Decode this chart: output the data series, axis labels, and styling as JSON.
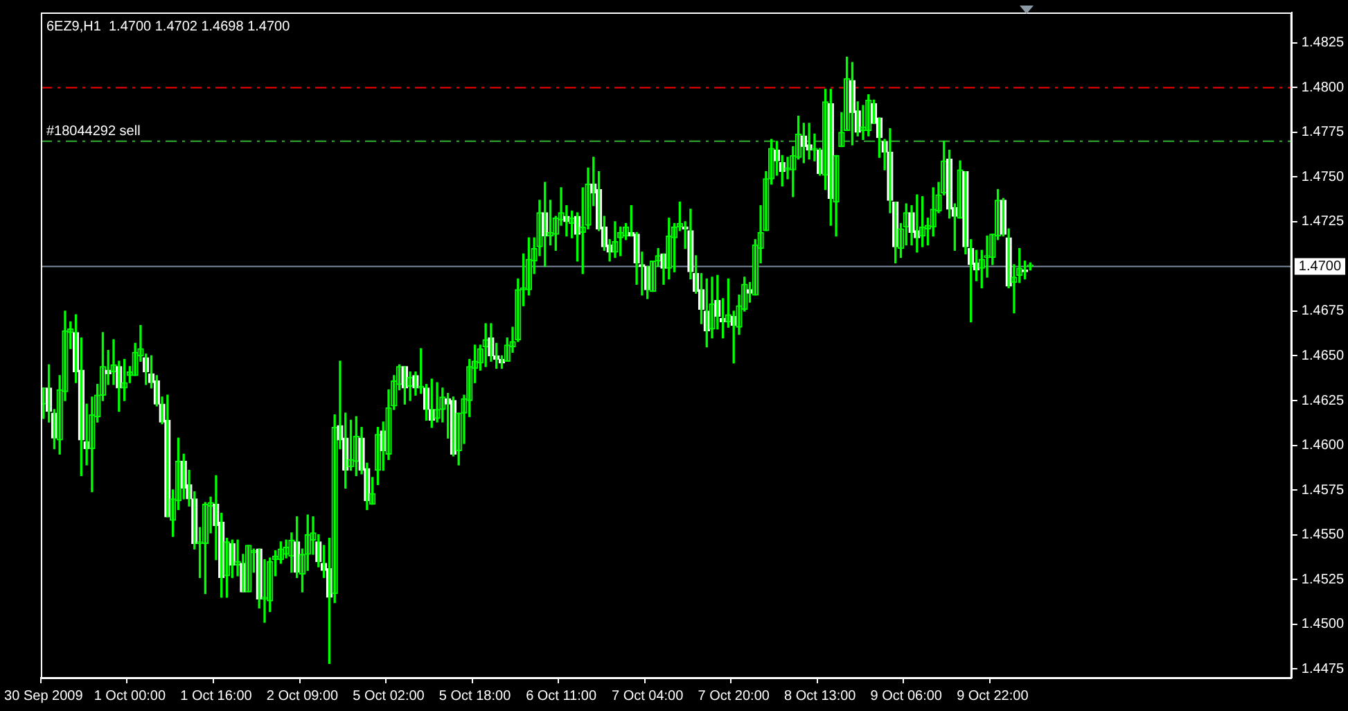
{
  "chart_data": {
    "type": "candlestick",
    "title": "6EZ9,H1  1.4700 1.4702 1.4698 1.4700",
    "color": "#00ff00",
    "categories": [
      "30 Sep 2009",
      null,
      null,
      null,
      null,
      null,
      null,
      null,
      null,
      null,
      null,
      null,
      null,
      null,
      null,
      null,
      "1 Oct 00:00",
      null,
      null,
      null,
      null,
      null,
      null,
      null,
      null,
      null,
      null,
      null,
      null,
      null,
      null,
      null,
      "1 Oct 16:00",
      null,
      null,
      null,
      null,
      null,
      null,
      null,
      null,
      null,
      null,
      null,
      null,
      null,
      null,
      null,
      "2 Oct 09:00",
      null,
      null,
      null,
      null,
      null,
      null,
      null,
      null,
      null,
      null,
      null,
      null,
      null,
      null,
      null,
      "5 Oct 02:00",
      null,
      null,
      null,
      null,
      null,
      null,
      null,
      null,
      null,
      null,
      null,
      null,
      null,
      null,
      null,
      "5 Oct 18:00",
      null,
      null,
      null,
      null,
      null,
      null,
      null,
      null,
      null,
      null,
      null,
      null,
      null,
      null,
      null,
      "6 Oct 11:00",
      null,
      null,
      null,
      null,
      null,
      null,
      null,
      null,
      null,
      null,
      null,
      null,
      null,
      null,
      null,
      "7 Oct 04:00",
      null,
      null,
      null,
      null,
      null,
      null,
      null,
      null,
      null,
      null,
      null,
      null,
      null,
      null,
      null,
      "7 Oct 20:00",
      null,
      null,
      null,
      null,
      null,
      null,
      null,
      null,
      null,
      null,
      null,
      null,
      null,
      null,
      null,
      "8 Oct 13:00",
      null,
      null,
      null,
      null,
      null,
      null,
      null,
      null,
      null,
      null,
      null,
      null,
      null,
      null,
      null,
      "9 Oct 06:00",
      null,
      null,
      null,
      null,
      null,
      null,
      null,
      null,
      null,
      null,
      null,
      null,
      null,
      null,
      null,
      "9 Oct 22:00",
      null,
      null,
      null,
      null,
      null,
      null,
      null,
      null,
      null,
      null,
      null,
      null,
      null,
      null,
      null,
      null,
      null,
      null,
      null,
      null,
      null,
      null,
      null,
      null,
      null,
      null,
      null,
      null,
      null,
      null,
      null,
      null,
      null,
      null,
      null,
      null,
      null,
      null,
      null,
      null,
      null,
      null,
      null,
      null,
      null,
      null,
      null,
      null,
      null,
      null,
      null,
      null,
      null,
      null,
      null
    ],
    "ohlc": [
      [
        1.4623,
        1.4632,
        1.4615,
        1.4632
      ],
      [
        1.4632,
        1.4645,
        1.4613,
        1.4619
      ],
      [
        1.4618,
        1.462,
        1.4598,
        1.4604
      ],
      [
        1.4603,
        1.4639,
        1.4595,
        1.4631
      ],
      [
        1.463,
        1.4675,
        1.4625,
        1.4664
      ],
      [
        1.4663,
        1.4669,
        1.4654,
        1.4665
      ],
      [
        1.4663,
        1.4673,
        1.4635,
        1.4641
      ],
      [
        1.4642,
        1.466,
        1.4583,
        1.4603
      ],
      [
        1.4602,
        1.4623,
        1.4589,
        1.4598
      ],
      [
        1.4598,
        1.4627,
        1.4574,
        1.4617
      ],
      [
        1.4616,
        1.4634,
        1.4613,
        1.4628
      ],
      [
        1.4628,
        1.4663,
        1.4625,
        1.4644
      ],
      [
        1.4642,
        1.4653,
        1.4634,
        1.464
      ],
      [
        1.4641,
        1.4659,
        1.4634,
        1.4645
      ],
      [
        1.4644,
        1.4647,
        1.4619,
        1.4632
      ],
      [
        1.4632,
        1.4648,
        1.4625,
        1.4635
      ],
      [
        1.4639,
        1.4644,
        1.4635,
        1.4641
      ],
      [
        1.4639,
        1.4657,
        1.4639,
        1.4652
      ],
      [
        1.465,
        1.4667,
        1.4647,
        1.4654
      ],
      [
        1.4649,
        1.4651,
        1.4634,
        1.4641
      ],
      [
        1.464,
        1.465,
        1.4632,
        1.4635
      ],
      [
        1.4636,
        1.4639,
        1.4622,
        1.4623
      ],
      [
        1.4623,
        1.4627,
        1.4612,
        1.4613
      ],
      [
        1.4614,
        1.4628,
        1.456,
        1.456
      ],
      [
        1.4558,
        1.4575,
        1.4549,
        1.457
      ],
      [
        1.4569,
        1.4604,
        1.4564,
        1.4591
      ],
      [
        1.4591,
        1.4595,
        1.457,
        1.4576
      ],
      [
        1.4578,
        1.4586,
        1.4566,
        1.457
      ],
      [
        1.457,
        1.4574,
        1.4542,
        1.4545
      ],
      [
        1.4545,
        1.4554,
        1.4526,
        1.4546
      ],
      [
        1.4545,
        1.4568,
        1.4517,
        1.4567
      ],
      [
        1.4566,
        1.4571,
        1.4551,
        1.4568
      ],
      [
        1.4567,
        1.4583,
        1.4536,
        1.4555
      ],
      [
        1.4557,
        1.4562,
        1.4515,
        1.4526
      ],
      [
        1.4527,
        1.4548,
        1.4515,
        1.4546
      ],
      [
        1.4545,
        1.4547,
        1.4526,
        1.4533
      ],
      [
        1.4533,
        1.4547,
        1.4527,
        1.4535
      ],
      [
        1.4534,
        1.4539,
        1.4518,
        1.4518
      ],
      [
        1.4518,
        1.4544,
        1.4518,
        1.4544
      ],
      [
        1.454,
        1.4542,
        1.4529,
        1.4541
      ],
      [
        1.4542,
        1.4542,
        1.4509,
        1.4514
      ],
      [
        1.4514,
        1.4536,
        1.4501,
        1.4515
      ],
      [
        1.4513,
        1.4537,
        1.4507,
        1.4535
      ],
      [
        1.4536,
        1.4541,
        1.4527,
        1.4538
      ],
      [
        1.4536,
        1.4546,
        1.4534,
        1.4542
      ],
      [
        1.4539,
        1.4547,
        1.4537,
        1.4543
      ],
      [
        1.4538,
        1.4551,
        1.4529,
        1.4547
      ],
      [
        1.4546,
        1.456,
        1.4526,
        1.4529
      ],
      [
        1.4528,
        1.4542,
        1.4518,
        1.4539
      ],
      [
        1.4539,
        1.4561,
        1.453,
        1.455
      ],
      [
        1.4547,
        1.456,
        1.4539,
        1.4551
      ],
      [
        1.4546,
        1.455,
        1.4532,
        1.4535
      ],
      [
        1.4534,
        1.4544,
        1.4526,
        1.453
      ],
      [
        1.4531,
        1.4548,
        1.4478,
        1.4515
      ],
      [
        1.4517,
        1.4617,
        1.4512,
        1.461
      ],
      [
        1.4611,
        1.4647,
        1.4598,
        1.4603
      ],
      [
        1.4604,
        1.4618,
        1.4576,
        1.4586
      ],
      [
        1.4588,
        1.4614,
        1.4586,
        1.4592
      ],
      [
        1.4591,
        1.4616,
        1.4583,
        1.4605
      ],
      [
        1.4604,
        1.461,
        1.4584,
        1.4586
      ],
      [
        1.4587,
        1.459,
        1.4564,
        1.4569
      ],
      [
        1.4567,
        1.4582,
        1.4567,
        1.4573
      ],
      [
        1.4586,
        1.461,
        1.4578,
        1.4606
      ],
      [
        1.4608,
        1.4613,
        1.4586,
        1.4597
      ],
      [
        1.4595,
        1.4631,
        1.4592,
        1.4621
      ],
      [
        1.4622,
        1.4639,
        1.462,
        1.4636
      ],
      [
        1.4634,
        1.4645,
        1.4631,
        1.4644
      ],
      [
        1.4644,
        1.4644,
        1.4623,
        1.4632
      ],
      [
        1.4633,
        1.4641,
        1.4625,
        1.4638
      ],
      [
        1.4639,
        1.4641,
        1.4628,
        1.4632
      ],
      [
        1.4632,
        1.4654,
        1.4629,
        1.4633
      ],
      [
        1.4632,
        1.4634,
        1.4614,
        1.462
      ],
      [
        1.462,
        1.4637,
        1.461,
        1.4614
      ],
      [
        1.4615,
        1.4635,
        1.4613,
        1.462
      ],
      [
        1.462,
        1.4632,
        1.4613,
        1.4627
      ],
      [
        1.4626,
        1.4629,
        1.4604,
        1.4623
      ],
      [
        1.4625,
        1.4627,
        1.4594,
        1.4595
      ],
      [
        1.4597,
        1.4618,
        1.4589,
        1.4618
      ],
      [
        1.4618,
        1.4628,
        1.4601,
        1.4626
      ],
      [
        1.4625,
        1.4648,
        1.4616,
        1.4644
      ],
      [
        1.4643,
        1.4656,
        1.4635,
        1.4647
      ],
      [
        1.4646,
        1.4656,
        1.4642,
        1.4654
      ],
      [
        1.4655,
        1.4668,
        1.4644,
        1.4659
      ],
      [
        1.466,
        1.4668,
        1.4647,
        1.465
      ],
      [
        1.465,
        1.4657,
        1.4643,
        1.4648
      ],
      [
        1.4648,
        1.465,
        1.4643,
        1.4646
      ],
      [
        1.4647,
        1.466,
        1.4647,
        1.4656
      ],
      [
        1.4655,
        1.4666,
        1.4652,
        1.4658
      ],
      [
        1.4659,
        1.4693,
        1.4658,
        1.4687
      ],
      [
        1.4687,
        1.4707,
        1.4678,
        1.4688
      ],
      [
        1.4687,
        1.4716,
        1.4684,
        1.4704
      ],
      [
        1.4703,
        1.4716,
        1.4696,
        1.471
      ],
      [
        1.4711,
        1.4737,
        1.4706,
        1.473
      ],
      [
        1.473,
        1.4747,
        1.47,
        1.4717
      ],
      [
        1.4717,
        1.4737,
        1.4712,
        1.4719
      ],
      [
        1.4718,
        1.4728,
        1.4709,
        1.4727
      ],
      [
        1.4726,
        1.4744,
        1.4723,
        1.473
      ],
      [
        1.4728,
        1.4734,
        1.4717,
        1.4725
      ],
      [
        1.4724,
        1.4731,
        1.4716,
        1.4727
      ],
      [
        1.4728,
        1.473,
        1.4703,
        1.4718
      ],
      [
        1.4719,
        1.4744,
        1.4696,
        1.4722
      ],
      [
        1.4723,
        1.4755,
        1.4721,
        1.4746
      ],
      [
        1.4746,
        1.4761,
        1.4734,
        1.4741
      ],
      [
        1.4743,
        1.4753,
        1.472,
        1.4721
      ],
      [
        1.4722,
        1.4728,
        1.4709,
        1.4711
      ],
      [
        1.4712,
        1.4715,
        1.4703,
        1.4708
      ],
      [
        1.4708,
        1.4725,
        1.4705,
        1.4714
      ],
      [
        1.4716,
        1.4722,
        1.4706,
        1.4719
      ],
      [
        1.4717,
        1.4724,
        1.4715,
        1.4722
      ],
      [
        1.4719,
        1.4734,
        1.4717,
        1.4717
      ],
      [
        1.4718,
        1.4719,
        1.469,
        1.4702
      ],
      [
        1.4701,
        1.4708,
        1.4684,
        1.47
      ],
      [
        1.47,
        1.47,
        1.4682,
        1.4687
      ],
      [
        1.4686,
        1.4703,
        1.4686,
        1.4703
      ],
      [
        1.4703,
        1.471,
        1.47,
        1.4706
      ],
      [
        1.4707,
        1.4707,
        1.469,
        1.4699
      ],
      [
        1.4699,
        1.4727,
        1.4693,
        1.4717
      ],
      [
        1.4716,
        1.4724,
        1.4697,
        1.4722
      ],
      [
        1.4722,
        1.4736,
        1.472,
        1.4724
      ],
      [
        1.4722,
        1.4725,
        1.471,
        1.4721
      ],
      [
        1.472,
        1.4732,
        1.4693,
        1.4697
      ],
      [
        1.4696,
        1.4706,
        1.4685,
        1.4686
      ],
      [
        1.4687,
        1.4696,
        1.4668,
        1.4676
      ],
      [
        1.4675,
        1.4693,
        1.4655,
        1.4664
      ],
      [
        1.4665,
        1.4694,
        1.466,
        1.4679
      ],
      [
        1.4681,
        1.4695,
        1.4665,
        1.4672
      ],
      [
        1.4671,
        1.4682,
        1.466,
        1.4669
      ],
      [
        1.4669,
        1.4693,
        1.4666,
        1.4673
      ],
      [
        1.4672,
        1.4675,
        1.4646,
        1.4667
      ],
      [
        1.4666,
        1.4684,
        1.4662,
        1.4678
      ],
      [
        1.4676,
        1.4694,
        1.4675,
        1.469
      ],
      [
        1.4687,
        1.4691,
        1.468,
        1.4685
      ],
      [
        1.4684,
        1.4715,
        1.4684,
        1.4712
      ],
      [
        1.471,
        1.4734,
        1.4702,
        1.4719
      ],
      [
        1.472,
        1.4753,
        1.472,
        1.4749
      ],
      [
        1.4749,
        1.4771,
        1.4746,
        1.4766
      ],
      [
        1.4765,
        1.477,
        1.4751,
        1.4759
      ],
      [
        1.4758,
        1.4762,
        1.4745,
        1.4753
      ],
      [
        1.4754,
        1.4761,
        1.4749,
        1.4755
      ],
      [
        1.4754,
        1.4767,
        1.4739,
        1.4762
      ],
      [
        1.4761,
        1.4784,
        1.476,
        1.4774
      ],
      [
        1.4773,
        1.478,
        1.4758,
        1.4767
      ],
      [
        1.4768,
        1.478,
        1.476,
        1.4765
      ],
      [
        1.4765,
        1.4774,
        1.4759,
        1.4766
      ],
      [
        1.4765,
        1.4766,
        1.4751,
        1.4752
      ],
      [
        1.4751,
        1.4799,
        1.4743,
        1.4792
      ],
      [
        1.4791,
        1.4799,
        1.4723,
        1.4738
      ],
      [
        1.4736,
        1.4762,
        1.4717,
        1.4762
      ],
      [
        1.4767,
        1.4786,
        1.4767,
        1.4775
      ],
      [
        1.4776,
        1.4817,
        1.4776,
        1.4805
      ],
      [
        1.4804,
        1.4814,
        1.4768,
        1.4786
      ],
      [
        1.4787,
        1.4792,
        1.4773,
        1.4775
      ],
      [
        1.4776,
        1.479,
        1.4771,
        1.4778
      ],
      [
        1.4776,
        1.4796,
        1.4773,
        1.4793
      ],
      [
        1.4791,
        1.4793,
        1.478,
        1.478
      ],
      [
        1.4783,
        1.4783,
        1.4761,
        1.4772
      ],
      [
        1.477,
        1.4771,
        1.4754,
        1.4764
      ],
      [
        1.4764,
        1.4777,
        1.473,
        1.4737
      ],
      [
        1.4736,
        1.4736,
        1.4702,
        1.4711
      ],
      [
        1.471,
        1.4724,
        1.4705,
        1.4721
      ],
      [
        1.4722,
        1.4735,
        1.4712,
        1.473
      ],
      [
        1.473,
        1.4734,
        1.4712,
        1.4719
      ],
      [
        1.472,
        1.474,
        1.4708,
        1.4716
      ],
      [
        1.4717,
        1.4739,
        1.4711,
        1.4722
      ],
      [
        1.4721,
        1.4727,
        1.4712,
        1.4723
      ],
      [
        1.4722,
        1.4744,
        1.4717,
        1.4732
      ],
      [
        1.4731,
        1.4747,
        1.473,
        1.474
      ],
      [
        1.4741,
        1.477,
        1.474,
        1.4759
      ],
      [
        1.476,
        1.4765,
        1.4727,
        1.4732
      ],
      [
        1.4733,
        1.4735,
        1.4709,
        1.4728
      ],
      [
        1.4727,
        1.4759,
        1.4727,
        1.4754
      ],
      [
        1.4753,
        1.4753,
        1.4707,
        1.4711
      ],
      [
        1.471,
        1.4715,
        1.4669,
        1.4701
      ],
      [
        1.4702,
        1.4709,
        1.4692,
        1.4698
      ],
      [
        1.4699,
        1.4709,
        1.4688,
        1.4704
      ],
      [
        1.4705,
        1.4717,
        1.4694,
        1.4706
      ],
      [
        1.4705,
        1.4718,
        1.4701,
        1.4718
      ],
      [
        1.4717,
        1.4743,
        1.4715,
        1.4737
      ],
      [
        1.4737,
        1.4738,
        1.4717,
        1.4718
      ],
      [
        1.4716,
        1.4721,
        1.4688,
        1.4689
      ],
      [
        1.4691,
        1.4701,
        1.4674,
        1.4694
      ],
      [
        1.4695,
        1.471,
        1.4691,
        1.4699
      ],
      [
        1.4698,
        1.4703,
        1.4693,
        1.4697
      ],
      [
        1.47,
        1.4702,
        1.4698,
        1.47
      ],
      null,
      null,
      null,
      null,
      null,
      null,
      null,
      null,
      null,
      null,
      null,
      null,
      null,
      null,
      null,
      null,
      null,
      null,
      null,
      null,
      null,
      null,
      null,
      null,
      null,
      null,
      null,
      null,
      null,
      null,
      null,
      null,
      null,
      null,
      null,
      null,
      null,
      null,
      null,
      null,
      null,
      null,
      null,
      null,
      null,
      null,
      null,
      null
    ],
    "colors": [
      "#00ff00",
      "#ffffff",
      "#ffffff",
      "#00ff00",
      "#00ff00",
      "#00ff00",
      "#ffffff",
      "#ffffff",
      "#ffffff",
      "#00ff00",
      "#00ff00",
      "#00ff00",
      "#ffffff",
      "#00ff00",
      "#ffffff",
      "#00ff00",
      "#00ff00",
      "#00ff00",
      "#00ff00",
      "#ffffff",
      "#ffffff",
      "#ffffff",
      "#ffffff",
      "#ffffff",
      "#00ff00",
      "#00ff00",
      "#ffffff",
      "#ffffff",
      "#ffffff",
      "#00ff00",
      "#00ff00",
      "#00ff00",
      "#ffffff",
      "#ffffff",
      "#00ff00",
      "#ffffff",
      "#00ff00",
      "#ffffff",
      "#00ff00",
      "#00ff00",
      "#ffffff",
      "#00ff00",
      "#00ff00",
      "#00ff00",
      "#00ff00",
      "#00ff00",
      "#00ff00",
      "#ffffff",
      "#00ff00",
      "#00ff00",
      "#00ff00",
      "#ffffff",
      "#ffffff",
      "#ffffff",
      "#00ff00",
      "#ffffff",
      "#ffffff",
      "#00ff00",
      "#00ff00",
      "#ffffff",
      "#ffffff",
      "#00ff00",
      "#00ff00",
      "#ffffff",
      "#00ff00",
      "#00ff00",
      "#00ff00",
      "#ffffff",
      "#00ff00",
      "#ffffff",
      "#00ff00",
      "#ffffff",
      "#ffffff",
      "#00ff00",
      "#00ff00",
      "#ffffff",
      "#ffffff",
      "#00ff00",
      "#00ff00",
      "#00ff00",
      "#00ff00",
      "#00ff00",
      "#00ff00",
      "#ffffff",
      "#ffffff",
      "#ffffff",
      "#00ff00",
      "#00ff00",
      "#00ff00",
      "#00ff00",
      "#00ff00",
      "#00ff00",
      "#00ff00",
      "#ffffff",
      "#00ff00",
      "#00ff00",
      "#00ff00",
      "#ffffff",
      "#00ff00",
      "#ffffff",
      "#00ff00",
      "#00ff00",
      "#ffffff",
      "#ffffff",
      "#ffffff",
      "#ffffff",
      "#00ff00",
      "#00ff00",
      "#00ff00",
      "#ffffff",
      "#ffffff",
      "#ffffff",
      "#ffffff",
      "#00ff00",
      "#00ff00",
      "#ffffff",
      "#00ff00",
      "#00ff00",
      "#00ff00",
      "#ffffff",
      "#ffffff",
      "#ffffff",
      "#ffffff",
      "#ffffff",
      "#00ff00",
      "#ffffff",
      "#ffffff",
      "#00ff00",
      "#ffffff",
      "#00ff00",
      "#00ff00",
      "#ffffff",
      "#00ff00",
      "#00ff00",
      "#00ff00",
      "#00ff00",
      "#ffffff",
      "#ffffff",
      "#00ff00",
      "#00ff00",
      "#00ff00",
      "#ffffff",
      "#ffffff",
      "#00ff00",
      "#ffffff",
      "#00ff00",
      "#ffffff",
      "#00ff00",
      "#00ff00",
      "#00ff00",
      "#ffffff",
      "#ffffff",
      "#00ff00",
      "#00ff00",
      "#ffffff",
      "#ffffff",
      "#ffffff",
      "#ffffff",
      "#ffffff",
      "#00ff00",
      "#00ff00",
      "#ffffff",
      "#ffffff",
      "#00ff00",
      "#00ff00",
      "#00ff00",
      "#00ff00",
      "#00ff00",
      "#ffffff",
      "#ffffff",
      "#00ff00",
      "#ffffff",
      "#ffffff",
      "#ffffff",
      "#00ff00",
      "#00ff00",
      "#00ff00",
      "#00ff00",
      "#ffffff",
      "#ffffff",
      "#00ff00",
      "#00ff00",
      "#ffffff",
      "#00ff00",
      null,
      null,
      null,
      null,
      null,
      null,
      null,
      null,
      null,
      null,
      null,
      null,
      null,
      null,
      null,
      null,
      null,
      null,
      null,
      null,
      null,
      null,
      null,
      null,
      null,
      null,
      null,
      null,
      null,
      null,
      null,
      null,
      null,
      null,
      null,
      null,
      null,
      null,
      null,
      null,
      null,
      null,
      null,
      null,
      null,
      null,
      null,
      null
    ],
    "ylim": [
      1.447,
      1.4842
    ],
    "yticks": [
      1.4825,
      {
        "value": 1.48,
        "label": "1.4800"
      },
      1.4775,
      {
        "value": 1.475,
        "label": "1.4750"
      },
      1.4725,
      1.4675,
      {
        "value": 1.465,
        "label": "1.4650"
      },
      1.4625,
      {
        "value": 1.46,
        "label": "1.4600"
      },
      1.4575,
      {
        "value": 1.455,
        "label": "1.4550"
      },
      1.4525,
      {
        "value": 1.45,
        "label": "1.4500"
      },
      1.4475
    ],
    "ref_lines": [
      {
        "axis": "y",
        "value": 1.48,
        "color": "#ff0000",
        "line_style": "dashed"
      },
      {
        "axis": "y",
        "value": 1.477,
        "label": "#18044292 sell",
        "color": "#32b432",
        "line_style": "dashed"
      },
      {
        "axis": "y",
        "value": 1.47,
        "label": "1.4700",
        "color": "#7d8ca0",
        "line_style": "solid"
      }
    ]
  }
}
